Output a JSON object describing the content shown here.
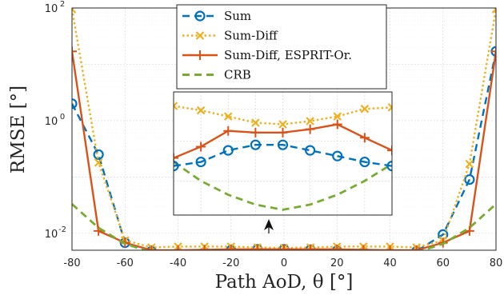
{
  "chart_data": {
    "type": "line",
    "xlabel": "Path AoD, θ [°]",
    "ylabel": "RMSE [°]",
    "xlim": [
      -80,
      80
    ],
    "ylim": [
      0.005,
      100
    ],
    "yscale": "log",
    "grid": true,
    "legend_position": "top-center",
    "x_ticks": [
      "-80",
      "-60",
      "-40",
      "-20",
      "0",
      "20",
      "40",
      "60",
      "80"
    ],
    "y_ticks": [
      {
        "value": 0.01,
        "base": "10",
        "exp": "-2"
      },
      {
        "value": 1,
        "base": "10",
        "exp": "0"
      },
      {
        "value": 100,
        "base": "10",
        "exp": "2"
      }
    ],
    "x": [
      -80,
      -70,
      -60,
      -50,
      -40,
      -30,
      -20,
      -10,
      0,
      10,
      20,
      30,
      40,
      50,
      60,
      70,
      80
    ],
    "series": [
      {
        "name": "Sum",
        "color": "#0072BD",
        "dash": "dashed",
        "marker": "circle",
        "values": [
          2.0,
          0.25,
          0.0068,
          0.0048,
          0.0045,
          0.0046,
          0.005,
          0.0052,
          0.0052,
          0.0051,
          0.0049,
          0.0046,
          0.0045,
          0.0048,
          0.0095,
          0.09,
          17.0
        ]
      },
      {
        "name": "Sum-Diff",
        "color": "#EDB120",
        "dash": "dotted",
        "marker": "x",
        "values": [
          95.0,
          0.18,
          0.0075,
          0.0056,
          0.0058,
          0.0058,
          0.0058,
          0.0056,
          0.0055,
          0.0056,
          0.0058,
          0.0058,
          0.0058,
          0.0056,
          0.0075,
          0.17,
          95.0
        ]
      },
      {
        "name": "Sum-Diff, ESPRIT-Or.",
        "color": "#D95319",
        "dash": "solid",
        "marker": "plus",
        "values": [
          17.0,
          0.011,
          0.0068,
          0.005,
          0.005,
          0.0051,
          0.0052,
          0.0052,
          0.0052,
          0.0052,
          0.0052,
          0.0051,
          0.005,
          0.005,
          0.0068,
          0.011,
          17.0
        ]
      },
      {
        "name": "CRB",
        "color": "#77AC30",
        "dash": "dashed",
        "marker": "none",
        "values": [
          0.033,
          0.0125,
          0.0065,
          0.0046,
          0.004,
          0.0037,
          0.0035,
          0.0034,
          0.0034,
          0.0034,
          0.0035,
          0.0037,
          0.004,
          0.0046,
          0.0065,
          0.0125,
          0.033
        ]
      }
    ],
    "inset": {
      "x": [
        -40,
        -30,
        -20,
        -10,
        0,
        10,
        20,
        30,
        40
      ],
      "series": [
        {
          "name": "Sum",
          "values": [
            0.00435,
            0.00445,
            0.00475,
            0.0049,
            0.0049,
            0.00475,
            0.0046,
            0.00445,
            0.00435
          ]
        },
        {
          "name": "Sum-Diff",
          "values": [
            0.0061,
            0.00595,
            0.00575,
            0.00555,
            0.0055,
            0.0056,
            0.00575,
            0.006,
            0.00605
          ]
        },
        {
          "name": "Sum-Diff, ESPRIT-Or.",
          "values": [
            0.00455,
            0.00485,
            0.0053,
            0.00525,
            0.00525,
            0.00535,
            0.0055,
            0.0051,
            0.00475
          ]
        },
        {
          "name": "CRB",
          "values": [
            0.00445,
            0.004,
            0.0037,
            0.0035,
            0.0034,
            0.0035,
            0.0037,
            0.004,
            0.0044
          ]
        }
      ]
    }
  }
}
